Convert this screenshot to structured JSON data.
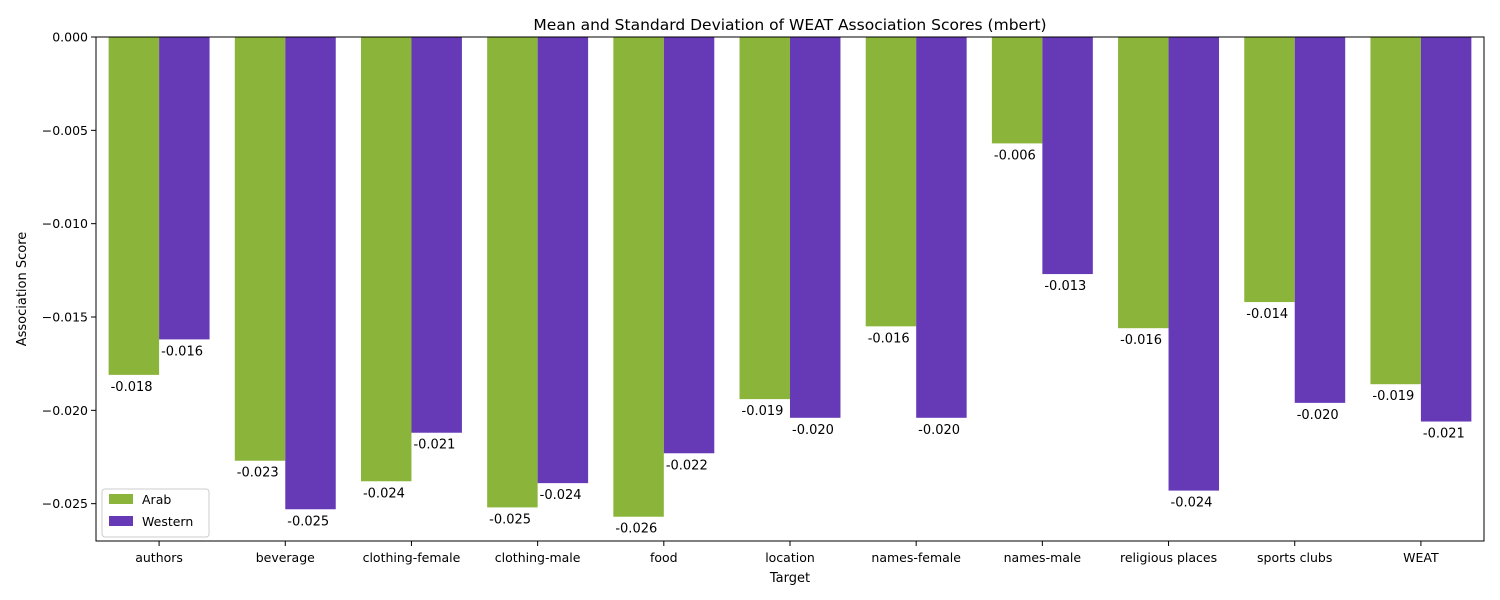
{
  "chart_data": {
    "type": "bar",
    "title": "Mean and Standard Deviation of WEAT Association Scores (mbert)",
    "xlabel": "Target",
    "ylabel": "Association Score",
    "categories": [
      "authors",
      "beverage",
      "clothing-female",
      "clothing-male",
      "food",
      "location",
      "names-female",
      "names-male",
      "religious places",
      "sports clubs",
      "WEAT"
    ],
    "series": [
      {
        "name": "Arab",
        "color": "#8bb53a",
        "values": [
          -0.0181,
          -0.0227,
          -0.0238,
          -0.0252,
          -0.0257,
          -0.0194,
          -0.0155,
          -0.0057,
          -0.0156,
          -0.0142,
          -0.0186
        ],
        "labels": [
          "-0.018",
          "-0.023",
          "-0.024",
          "-0.025",
          "-0.026",
          "-0.019",
          "-0.016",
          "-0.006",
          "-0.016",
          "-0.014",
          "-0.019"
        ]
      },
      {
        "name": "Western",
        "color": "#663ab7",
        "values": [
          -0.0162,
          -0.0253,
          -0.0212,
          -0.0239,
          -0.0223,
          -0.0204,
          -0.0204,
          -0.0127,
          -0.0243,
          -0.0196,
          -0.0206
        ],
        "labels": [
          "-0.016",
          "-0.025",
          "-0.021",
          "-0.024",
          "-0.022",
          "-0.020",
          "-0.020",
          "-0.013",
          "-0.024",
          "-0.020",
          "-0.021"
        ]
      }
    ],
    "ylim": [
      -0.027,
      0.0
    ],
    "yticks": [
      0.0,
      -0.005,
      -0.01,
      -0.015,
      -0.02,
      -0.025
    ],
    "ytick_labels": [
      "0.000",
      "−0.005",
      "−0.010",
      "−0.015",
      "−0.020",
      "−0.025"
    ],
    "grid": false,
    "legend_position": "lower-left"
  }
}
